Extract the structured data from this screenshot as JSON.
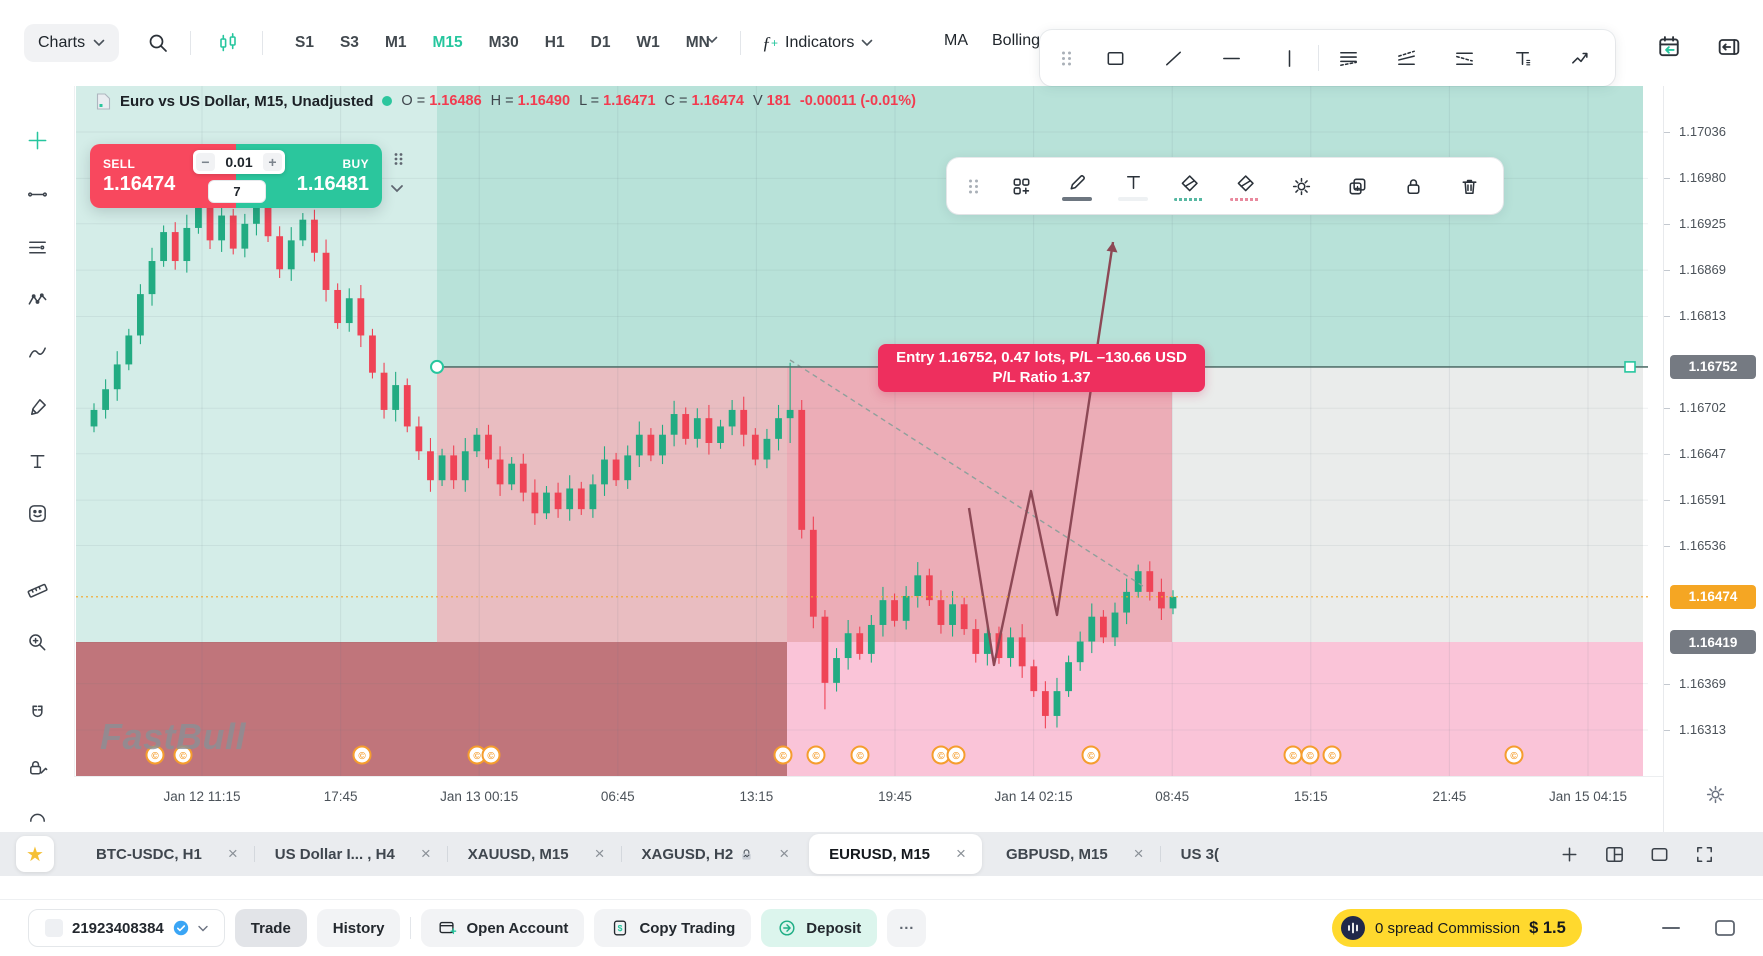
{
  "colors": {
    "accent_green": "#26c69e",
    "sell_red": "#f8485e",
    "buy_green": "#2bc69d",
    "entry_pink": "#ee2f5e",
    "current_orange": "#f5a623",
    "badge_gray": "#757a82",
    "promo_yellow": "#ffd92e",
    "up_candle": "#22ab82",
    "down_candle": "#ef4456",
    "ohlc_red": "#f23b4f"
  },
  "topbar": {
    "charts_label": "Charts",
    "left_icons": [
      "search-icon",
      "candlestick-icon"
    ],
    "timeframes": [
      "S1",
      "S3",
      "M1",
      "M15",
      "M30",
      "H1",
      "D1",
      "W1",
      "MN"
    ],
    "active_timeframe": "M15",
    "indicators_label": "Indicators",
    "ma_label": "MA",
    "bollinger_label": "Bolling",
    "right_icons": [
      "calendar-sync-icon",
      "collapse-panel-icon"
    ]
  },
  "drawing_toolbar": {
    "tools": [
      "drag-handle-icon",
      "rectangle-tool-icon",
      "trendline-tool-icon",
      "horizontal-line-tool-icon",
      "vertical-line-tool-icon",
      "parallel-channel-icon",
      "ascending-channel-icon",
      "descending-channel-icon",
      "text-tool-icon",
      "zigzag-arrow-icon"
    ]
  },
  "floating_toolbar": {
    "tools": [
      {
        "icon": "drag-handle-icon"
      },
      {
        "icon": "template-add-icon"
      },
      {
        "icon": "pencil-icon",
        "underline": "#6d7680",
        "underline_style": "solid"
      },
      {
        "icon": "text-style-icon",
        "underline": "#eef1f3",
        "underline_style": "solid"
      },
      {
        "icon": "fill-style-icon",
        "underline": "#57b8a2",
        "underline_style": "squiggle"
      },
      {
        "icon": "fill-style-icon",
        "underline": "#e9899e",
        "underline_style": "squiggle"
      },
      {
        "icon": "gear-icon"
      },
      {
        "icon": "duplicate-icon"
      },
      {
        "icon": "lock-icon"
      },
      {
        "icon": "trash-icon"
      }
    ]
  },
  "sidebar": {
    "tools": [
      "crosshair-plus-icon",
      "trend-line-icon",
      "horizontal-lines-icon",
      "pattern-icon",
      "curve-icon",
      "brush-icon",
      "text-annotation-icon",
      "emoji-icon",
      "measure-icon",
      "zoom-in-icon",
      "magnet-icon",
      "lock-drawings-icon",
      "more-tool-icon"
    ]
  },
  "chart_header": {
    "symbol_title": "Euro vs US Dollar, M15, Unadjusted",
    "o_label": "O =",
    "o": "1.16486",
    "h_label": "H =",
    "h": "1.16490",
    "l_label": "L =",
    "l": "1.16471",
    "c_label": "C =",
    "c": "1.16474",
    "v_label": "V",
    "v": "181",
    "change": "-0.00011 (-0.01%)"
  },
  "order_panel": {
    "sell_label": "SELL",
    "sell_price": "1.16474",
    "buy_label": "BUY",
    "buy_price": "1.16481",
    "minus": "−",
    "plus": "+",
    "quantity": "0.01",
    "spread": "7"
  },
  "position_label": {
    "line1": "Entry 1.16752, 0.47 lots, P/L –130.66 USD",
    "line2": "P/L Ratio 1.37"
  },
  "price_axis": {
    "ticks": [
      "1.17036",
      "1.16980",
      "1.16925",
      "1.16869",
      "1.16813",
      "1.16702",
      "1.16647",
      "1.16591",
      "1.16536",
      "1.16369",
      "1.16313"
    ],
    "entry_badge": "1.16752",
    "current_badge": "1.16474",
    "stop_badge": "1.16419"
  },
  "time_axis": {
    "labels": [
      "Jan 12 11:15",
      "17:45",
      "Jan 13 00:15",
      "06:45",
      "13:15",
      "19:45",
      "Jan 14 02:15",
      "08:45",
      "15:15",
      "21:45",
      "Jan 15 04:15"
    ]
  },
  "tabs": {
    "items": [
      {
        "label": "BTC-USDC, H1",
        "closable": true
      },
      {
        "label": "US Dollar I... , H4",
        "closable": true
      },
      {
        "label": "XAUUSD, M15",
        "closable": true
      },
      {
        "label": "XAGUSD, H2",
        "closable": true,
        "locked": true
      },
      {
        "label": "EURUSD, M15",
        "closable": true,
        "active": true
      },
      {
        "label": "GBPUSD, M15",
        "closable": true
      },
      {
        "label": "US 3(",
        "closable": false
      }
    ],
    "right_icons": [
      "plus-icon",
      "layout-grid-icon",
      "layout-single-icon",
      "fullscreen-icon"
    ]
  },
  "bottom_bar": {
    "account": "21923408384",
    "trade_label": "Trade",
    "history_label": "History",
    "open_account_label": "Open Account",
    "copy_trading_label": "Copy Trading",
    "deposit_label": "Deposit",
    "more_label": "···",
    "promo_text": "0 spread Commission",
    "promo_price": "$ 1.5"
  },
  "watermark": "FastBull",
  "chart_data": {
    "type": "candlestick",
    "symbol": "Euro vs US Dollar (EURUSD)",
    "timeframe": "M15",
    "axis_top": 1.17036,
    "axis_bottom": 1.16313,
    "entry_price": 1.16752,
    "current_price": 1.16474,
    "stop_price": 1.16419,
    "first_open": 1.1668,
    "closes": [
      1.167,
      1.16725,
      1.16755,
      1.1679,
      1.1684,
      1.1688,
      1.16915,
      1.1688,
      1.1692,
      1.1695,
      1.16905,
      1.16935,
      1.16895,
      1.16925,
      1.1695,
      1.1691,
      1.1687,
      1.16905,
      1.1693,
      1.1689,
      1.16845,
      1.16805,
      1.16835,
      1.1679,
      1.16745,
      1.167,
      1.1673,
      1.1668,
      1.1665,
      1.16615,
      1.16645,
      1.16615,
      1.1665,
      1.1667,
      1.1664,
      1.1661,
      1.16635,
      1.166,
      1.16575,
      1.166,
      1.1658,
      1.16605,
      1.1658,
      1.1661,
      1.1664,
      1.16615,
      1.16645,
      1.1667,
      1.16645,
      1.1667,
      1.16695,
      1.16665,
      1.1669,
      1.1666,
      1.1668,
      1.167,
      1.1667,
      1.1664,
      1.16665,
      1.1669,
      1.167,
      1.16555,
      1.1645,
      1.1637,
      1.164,
      1.1643,
      1.16405,
      1.1644,
      1.1647,
      1.16445,
      1.16475,
      1.165,
      1.1647,
      1.1644,
      1.16465,
      1.16435,
      1.16405,
      1.1643,
      1.164,
      1.16425,
      1.1639,
      1.1636,
      1.1633,
      1.1636,
      1.16395,
      1.1642,
      1.1645,
      1.16425,
      1.16455,
      1.1648,
      1.16505,
      1.1648,
      1.1646,
      1.16474
    ],
    "wick_overrides": {
      "60": {
        "h": 1.16757,
        "l": 1.1666
      },
      "63": {
        "l": 1.16338
      },
      "82": {
        "l": 1.16315
      }
    },
    "event_marker_xs": [
      155,
      183,
      362,
      477,
      491,
      783,
      816,
      860,
      941,
      956,
      1091,
      1293,
      1310,
      1332,
      1514
    ]
  }
}
